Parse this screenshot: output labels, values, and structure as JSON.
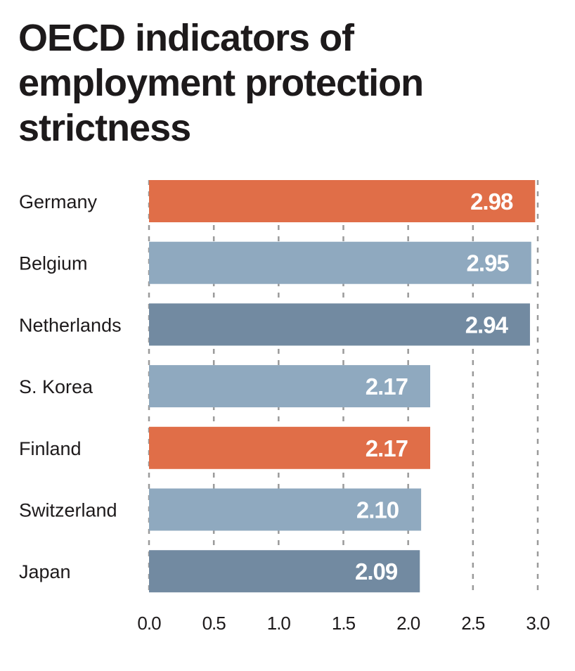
{
  "chart_data": {
    "type": "bar",
    "orientation": "horizontal",
    "title": "OECD indicators of employment protection strictness",
    "title_lines": [
      "OECD indicators of",
      "employment protection",
      "strictness"
    ],
    "categories": [
      "Germany",
      "Belgium",
      "Netherlands",
      "S. Korea",
      "Finland",
      "Switzerland",
      "Japan"
    ],
    "values": [
      2.98,
      2.95,
      2.94,
      2.17,
      2.17,
      2.1,
      2.09
    ],
    "value_labels": [
      "2.98",
      "2.95",
      "2.94",
      "2.17",
      "2.17",
      "2.10",
      "2.09"
    ],
    "bar_colors": [
      "#e06e48",
      "#8fa9bf",
      "#728aa1",
      "#8fa9bf",
      "#e06e48",
      "#8fa9bf",
      "#728aa1"
    ],
    "xlim": [
      0,
      3.0
    ],
    "xticks": [
      0,
      0.5,
      1.0,
      1.5,
      2.0,
      2.5,
      3.0
    ],
    "xtick_labels": [
      "0.0",
      "0.5",
      "1.0",
      "1.5",
      "2.0",
      "2.5",
      "3.0"
    ],
    "xlabel": "",
    "ylabel": "",
    "grid": "vertical dashed"
  }
}
